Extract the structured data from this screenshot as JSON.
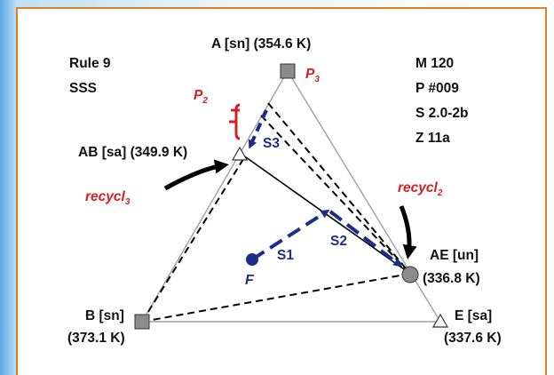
{
  "info_left": {
    "rule": "Rule 9",
    "type": "SSS"
  },
  "info_right": {
    "model": "M 120",
    "process": "P #009",
    "s": "S 2.0-2b",
    "z": "Z 11a"
  },
  "vertices": {
    "A": {
      "label": "A [sn] (354.6 K)"
    },
    "B": {
      "label": "B [sn]",
      "temp": "(373.1 K)"
    },
    "E": {
      "label": "E [sa]",
      "temp": "(337.6 K)"
    },
    "AB": {
      "label": "AB [sa] (349.9 K)"
    },
    "AE": {
      "label": "AE [un]",
      "temp": "(336.8 K)"
    }
  },
  "annotations": {
    "P2": {
      "base": "P",
      "sub": "2"
    },
    "P3": {
      "base": "P",
      "sub": "3"
    },
    "recycl3": {
      "base": "recycl",
      "sub": "3"
    },
    "recycl2": {
      "base": "recycl",
      "sub": "2"
    },
    "F": "F",
    "S1": "S1",
    "S2": "S2",
    "S3": "S3"
  },
  "colors": {
    "red": "#d42020",
    "blue": "#1a2d8a",
    "triangle": "#a0a0a0",
    "border": "#e08020"
  }
}
